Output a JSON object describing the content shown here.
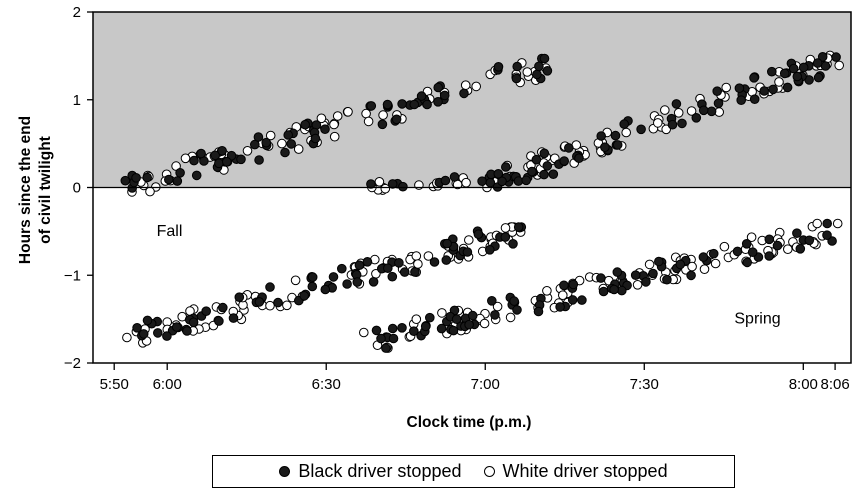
{
  "chart_data": {
    "type": "scatter",
    "xlabel": "Clock time (p.m.)",
    "ylabel": "Hours since the end of civil twilight",
    "x_ticks": [
      {
        "value": 350,
        "label": "5:50"
      },
      {
        "value": 360,
        "label": "6:00"
      },
      {
        "value": 390,
        "label": "6:30"
      },
      {
        "value": 420,
        "label": "7:00"
      },
      {
        "value": 450,
        "label": "7:30"
      },
      {
        "value": 480,
        "label": "8:00"
      },
      {
        "value": 486,
        "label": "8:06"
      }
    ],
    "y_ticks": [
      {
        "value": 2,
        "label": "2"
      },
      {
        "value": 1,
        "label": "1"
      },
      {
        "value": 0,
        "label": "0"
      },
      {
        "value": -1,
        "label": "−1"
      },
      {
        "value": -2,
        "label": "−2"
      }
    ],
    "xlim": [
      346,
      489
    ],
    "ylim": [
      -2,
      2
    ],
    "shaded_region": {
      "from_y": 0,
      "to_y": 2,
      "color": "#c8c8c8"
    },
    "annotations": [
      {
        "text": "Fall",
        "x": 358,
        "y": -0.55
      },
      {
        "text": "Spring",
        "x": 467,
        "y": -1.55
      }
    ],
    "legend_placement": "bottom-center",
    "series": [
      {
        "name": "Black driver stopped",
        "marker": "filled-circle",
        "color": "#1a1a1a"
      },
      {
        "name": "White driver stopped",
        "marker": "open-circle",
        "color": "#ffffff"
      }
    ],
    "clusters": [
      {
        "x_from": 352,
        "x_to": 433,
        "y_from": 0.0,
        "y_to": 1.42,
        "n_black": 70,
        "n_white": 70
      },
      {
        "x_from": 398,
        "x_to": 433,
        "y_from": 0.0,
        "y_to": 0.15,
        "n_black": 18,
        "n_white": 18
      },
      {
        "x_from": 420,
        "x_to": 487,
        "y_from": 0.05,
        "y_to": 1.48,
        "n_black": 65,
        "n_white": 65
      },
      {
        "x_from": 352,
        "x_to": 427,
        "y_from": -1.72,
        "y_to": -0.5,
        "n_black": 75,
        "n_white": 75
      },
      {
        "x_from": 397,
        "x_to": 487,
        "y_from": -1.78,
        "y_to": -0.46,
        "n_black": 85,
        "n_white": 85
      }
    ]
  },
  "legend": {
    "black_label": "Black driver stopped",
    "white_label": "White driver stopped"
  }
}
